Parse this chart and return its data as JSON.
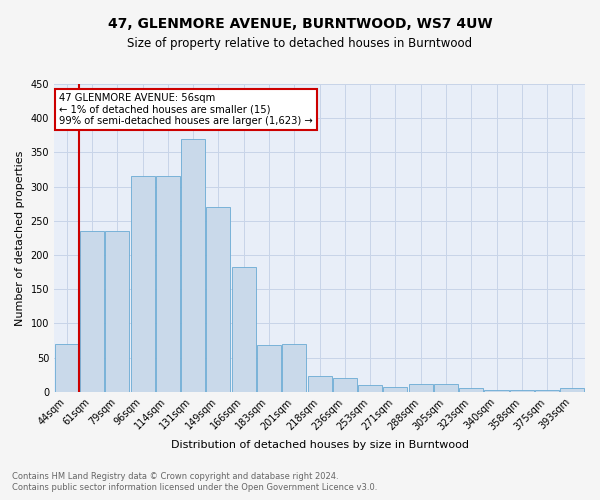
{
  "title": "47, GLENMORE AVENUE, BURNTWOOD, WS7 4UW",
  "subtitle": "Size of property relative to detached houses in Burntwood",
  "xlabel": "Distribution of detached houses by size in Burntwood",
  "ylabel": "Number of detached properties",
  "footer_line1": "Contains HM Land Registry data © Crown copyright and database right 2024.",
  "footer_line2": "Contains public sector information licensed under the Open Government Licence v3.0.",
  "bar_labels": [
    "44sqm",
    "61sqm",
    "79sqm",
    "96sqm",
    "114sqm",
    "131sqm",
    "149sqm",
    "166sqm",
    "183sqm",
    "201sqm",
    "218sqm",
    "236sqm",
    "253sqm",
    "271sqm",
    "288sqm",
    "305sqm",
    "323sqm",
    "340sqm",
    "358sqm",
    "375sqm",
    "393sqm"
  ],
  "bar_values": [
    70,
    235,
    235,
    315,
    315,
    370,
    270,
    183,
    68,
    70,
    23,
    20,
    10,
    7,
    11,
    11,
    5,
    3,
    3,
    3,
    5
  ],
  "bar_color": "#c9d9ea",
  "bar_edge_color": "#6aaad4",
  "annotation_text_line1": "47 GLENMORE AVENUE: 56sqm",
  "annotation_text_line2": "← 1% of detached houses are smaller (15)",
  "annotation_text_line3": "99% of semi-detached houses are larger (1,623) →",
  "annotation_box_color": "#ffffff",
  "annotation_border_color": "#cc0000",
  "vline_color": "#cc0000",
  "ylim": [
    0,
    450
  ],
  "yticks": [
    0,
    50,
    100,
    150,
    200,
    250,
    300,
    350,
    400,
    450
  ],
  "grid_color": "#c8d4e8",
  "bg_color": "#e8eef8",
  "fig_bg_color": "#f5f5f5",
  "title_fontsize": 10,
  "subtitle_fontsize": 8.5,
  "ylabel_fontsize": 8,
  "xlabel_fontsize": 8,
  "tick_fontsize": 7,
  "footer_fontsize": 6,
  "footer_color": "#666666"
}
